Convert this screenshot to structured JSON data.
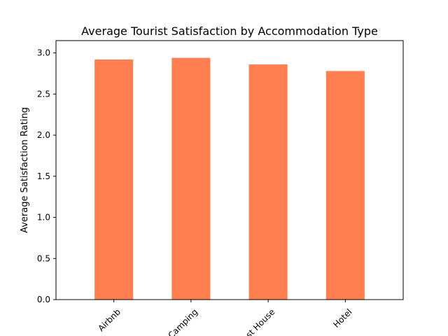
{
  "chart_data": {
    "type": "bar",
    "title": "Average Tourist Satisfaction by Accommodation Type",
    "xlabel": "",
    "ylabel": "Average Satisfaction Rating",
    "categories": [
      "Airbnb",
      "Camping",
      "Guest House",
      "Hotel"
    ],
    "values": [
      2.92,
      2.94,
      2.86,
      2.78
    ],
    "ylim": [
      0,
      3.15
    ],
    "yticks": [
      0.0,
      0.5,
      1.0,
      1.5,
      2.0,
      2.5,
      3.0
    ],
    "ytick_labels": [
      "0.0",
      "0.5",
      "1.0",
      "1.5",
      "2.0",
      "2.5",
      "3.0"
    ],
    "bar_color": "#ff7f50",
    "grid": false,
    "legend": "none"
  }
}
